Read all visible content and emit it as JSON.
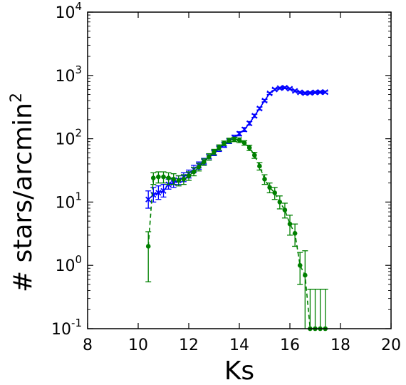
{
  "chart_data": {
    "type": "line",
    "title": "",
    "xlabel": "Ks",
    "ylabel": "# stars/arcmin",
    "ylabel_superscript": "2",
    "xlim": [
      8,
      20
    ],
    "ylim": [
      0.1,
      10000
    ],
    "yscale": "log",
    "grid": false,
    "x_ticks": [
      "8",
      "10",
      "12",
      "14",
      "16",
      "18",
      "20"
    ],
    "y_ticks": [
      {
        "base": "10",
        "exp": "-1",
        "value": 0.1
      },
      {
        "base": "10",
        "exp": "0",
        "value": 1
      },
      {
        "base": "10",
        "exp": "1",
        "value": 10
      },
      {
        "base": "10",
        "exp": "2",
        "value": 100
      },
      {
        "base": "10",
        "exp": "3",
        "value": 1000
      },
      {
        "base": "10",
        "exp": "4",
        "value": 10000
      }
    ],
    "series": [
      {
        "color": "#0000ff",
        "line_style": "solid",
        "marker": "x",
        "points": [
          {
            "x": 10.4,
            "y": 11,
            "lo": 8,
            "hi": 15
          },
          {
            "x": 10.6,
            "y": 13,
            "lo": 10,
            "hi": 17
          },
          {
            "x": 10.8,
            "y": 14,
            "lo": 11,
            "hi": 18
          },
          {
            "x": 11.0,
            "y": 15,
            "lo": 12,
            "hi": 19
          },
          {
            "x": 11.2,
            "y": 19,
            "lo": 16,
            "hi": 23
          },
          {
            "x": 11.4,
            "y": 20,
            "lo": 17,
            "hi": 24
          },
          {
            "x": 11.6,
            "y": 22,
            "lo": 19,
            "hi": 26
          },
          {
            "x": 11.8,
            "y": 25,
            "lo": 21,
            "hi": 29
          },
          {
            "x": 12.0,
            "y": 28,
            "lo": 24,
            "hi": 32
          },
          {
            "x": 12.2,
            "y": 33,
            "lo": 29,
            "hi": 38
          },
          {
            "x": 12.4,
            "y": 38,
            "lo": 33,
            "hi": 43
          },
          {
            "x": 12.6,
            "y": 44,
            "lo": 39,
            "hi": 49
          },
          {
            "x": 12.8,
            "y": 52,
            "lo": 46,
            "hi": 58
          },
          {
            "x": 13.0,
            "y": 60,
            "lo": 54,
            "hi": 66
          },
          {
            "x": 13.2,
            "y": 70,
            "lo": 63,
            "hi": 77
          },
          {
            "x": 13.4,
            "y": 80,
            "lo": 73,
            "hi": 88
          },
          {
            "x": 13.6,
            "y": 92,
            "lo": 84,
            "hi": 100
          },
          {
            "x": 13.8,
            "y": 105,
            "lo": 97,
            "hi": 114
          },
          {
            "x": 14.0,
            "y": 120,
            "lo": 111,
            "hi": 129
          },
          {
            "x": 14.2,
            "y": 140,
            "lo": 130,
            "hi": 150
          },
          {
            "x": 14.4,
            "y": 175,
            "lo": 164,
            "hi": 187
          },
          {
            "x": 14.6,
            "y": 230,
            "lo": 217,
            "hi": 244
          },
          {
            "x": 14.8,
            "y": 300,
            "lo": 285,
            "hi": 316
          },
          {
            "x": 15.0,
            "y": 400,
            "lo": 382,
            "hi": 418
          },
          {
            "x": 15.2,
            "y": 520,
            "lo": 500,
            "hi": 541
          },
          {
            "x": 15.4,
            "y": 600,
            "lo": 578,
            "hi": 622
          },
          {
            "x": 15.6,
            "y": 630,
            "lo": 608,
            "hi": 652
          },
          {
            "x": 15.8,
            "y": 640,
            "lo": 618,
            "hi": 662
          },
          {
            "x": 16.0,
            "y": 615,
            "lo": 593,
            "hi": 637
          },
          {
            "x": 16.2,
            "y": 570,
            "lo": 549,
            "hi": 591
          },
          {
            "x": 16.4,
            "y": 540,
            "lo": 520,
            "hi": 560
          },
          {
            "x": 16.6,
            "y": 525,
            "lo": 505,
            "hi": 545
          },
          {
            "x": 16.8,
            "y": 530,
            "lo": 510,
            "hi": 550
          },
          {
            "x": 17.0,
            "y": 540,
            "lo": 520,
            "hi": 560
          },
          {
            "x": 17.2,
            "y": 545,
            "lo": 525,
            "hi": 565
          },
          {
            "x": 17.4,
            "y": 545,
            "lo": 525,
            "hi": 565
          }
        ]
      },
      {
        "color": "#008000",
        "line_style": "dashed",
        "marker": "dot",
        "points": [
          {
            "x": 10.4,
            "y": 2.0,
            "lo": 0.55,
            "hi": 3.4
          },
          {
            "x": 10.6,
            "y": 24,
            "lo": 19,
            "hi": 29
          },
          {
            "x": 10.8,
            "y": 25,
            "lo": 20,
            "hi": 30
          },
          {
            "x": 11.0,
            "y": 25,
            "lo": 20,
            "hi": 30
          },
          {
            "x": 11.2,
            "y": 24,
            "lo": 19,
            "hi": 29
          },
          {
            "x": 11.4,
            "y": 23,
            "lo": 19,
            "hi": 28
          },
          {
            "x": 11.6,
            "y": 22,
            "lo": 18,
            "hi": 26
          },
          {
            "x": 11.8,
            "y": 23,
            "lo": 19,
            "hi": 27
          },
          {
            "x": 12.0,
            "y": 26,
            "lo": 22,
            "hi": 30
          },
          {
            "x": 12.2,
            "y": 30,
            "lo": 26,
            "hi": 35
          },
          {
            "x": 12.4,
            "y": 36,
            "lo": 31,
            "hi": 41
          },
          {
            "x": 12.6,
            "y": 43,
            "lo": 38,
            "hi": 48
          },
          {
            "x": 12.8,
            "y": 52,
            "lo": 46,
            "hi": 58
          },
          {
            "x": 13.0,
            "y": 62,
            "lo": 56,
            "hi": 68
          },
          {
            "x": 13.2,
            "y": 73,
            "lo": 66,
            "hi": 80
          },
          {
            "x": 13.4,
            "y": 85,
            "lo": 78,
            "hi": 92
          },
          {
            "x": 13.6,
            "y": 94,
            "lo": 86,
            "hi": 102
          },
          {
            "x": 13.8,
            "y": 98,
            "lo": 90,
            "hi": 106
          },
          {
            "x": 14.0,
            "y": 95,
            "lo": 87,
            "hi": 103
          },
          {
            "x": 14.2,
            "y": 86,
            "lo": 79,
            "hi": 93
          },
          {
            "x": 14.4,
            "y": 72,
            "lo": 65,
            "hi": 79
          },
          {
            "x": 14.6,
            "y": 55,
            "lo": 49,
            "hi": 61
          },
          {
            "x": 14.8,
            "y": 37,
            "lo": 32,
            "hi": 42
          },
          {
            "x": 15.0,
            "y": 23,
            "lo": 19,
            "hi": 27
          },
          {
            "x": 15.2,
            "y": 17,
            "lo": 14,
            "hi": 20
          },
          {
            "x": 15.4,
            "y": 14,
            "lo": 11,
            "hi": 17
          },
          {
            "x": 15.6,
            "y": 10,
            "lo": 7.8,
            "hi": 12.5
          },
          {
            "x": 15.8,
            "y": 7.5,
            "lo": 5.6,
            "hi": 9.6
          },
          {
            "x": 16.0,
            "y": 4.5,
            "lo": 3.0,
            "hi": 6.2
          },
          {
            "x": 16.2,
            "y": 3.2,
            "lo": 2.0,
            "hi": 4.5
          },
          {
            "x": 16.4,
            "y": 1.0,
            "lo": 0.5,
            "hi": 1.6
          },
          {
            "x": 16.6,
            "y": 0.7,
            "lo": 0.1,
            "hi": 1.7
          },
          {
            "x": 16.8,
            "y": 0.1,
            "lo": 0.1,
            "hi": 0.42
          },
          {
            "x": 17.0,
            "y": 0.1,
            "lo": 0.1,
            "hi": 0.42
          },
          {
            "x": 17.2,
            "y": 0.1,
            "lo": 0.1,
            "hi": 0.42
          },
          {
            "x": 17.4,
            "y": 0.1,
            "lo": 0.1,
            "hi": 0.42
          }
        ]
      }
    ]
  }
}
